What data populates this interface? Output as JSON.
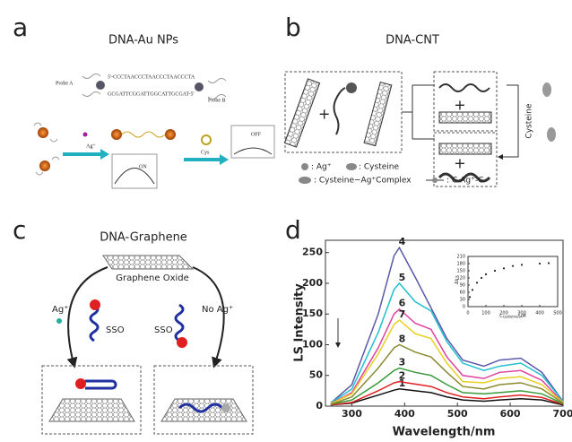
{
  "panels": [
    {
      "letter": "a",
      "title": "DNA-Au NPs",
      "probe_a": "Probe A",
      "probe_b": "Probe B",
      "seq_a": "5'-CCCTAACCCTAACCCTAACCCTA",
      "seq_b": "GCGATTCGGATTGGCATTGCGAT-5'",
      "ag": "Ag⁺",
      "on": "ON",
      "cys": "Cys",
      "off": "OFF"
    },
    {
      "letter": "b",
      "title": "DNA-CNT",
      "legend_ag": ": Ag⁺",
      "legend_cys": ": Cysteine",
      "legend_complex": ": Cysteine−Ag⁺Complex",
      "legend_cagc": ": C-Ag⁺-C",
      "side": "Cysteine"
    },
    {
      "letter": "c",
      "title": "DNA-Graphene",
      "go": "Graphene Oxide",
      "ag": "Ag⁺",
      "sso_left": "SSO",
      "sso_right": "SSO",
      "no_ag": "No Ag⁺"
    },
    {
      "letter": "d"
    }
  ],
  "chart_data": [
    {
      "type": "line",
      "y_label": "LS Intensity",
      "x_label": "Wavelength/nm",
      "x": [
        260,
        300,
        350,
        380,
        390,
        420,
        450,
        480,
        510,
        550,
        580,
        620,
        660,
        700
      ],
      "xlim": [
        250,
        700
      ],
      "ylim": [
        0,
        270
      ],
      "xticks": [
        300,
        400,
        500,
        600,
        700
      ],
      "yticks": [
        0,
        50,
        100,
        150,
        200,
        250
      ],
      "series": [
        {
          "name": "1",
          "color": "#111111",
          "values": [
            2,
            5,
            18,
            26,
            28,
            25,
            22,
            15,
            10,
            8,
            10,
            12,
            10,
            2
          ]
        },
        {
          "name": "2",
          "color": "#e02020",
          "values": [
            2,
            6,
            25,
            38,
            40,
            36,
            32,
            22,
            15,
            12,
            15,
            18,
            14,
            3
          ]
        },
        {
          "name": "3",
          "color": "#3a9a3a",
          "values": [
            3,
            10,
            38,
            58,
            62,
            55,
            50,
            35,
            22,
            20,
            22,
            25,
            20,
            4
          ]
        },
        {
          "name": "4",
          "color": "#5a5aa8",
          "values": [
            5,
            35,
            150,
            245,
            258,
            210,
            160,
            110,
            75,
            65,
            75,
            78,
            55,
            8
          ]
        },
        {
          "name": "5",
          "color": "#22c0d0",
          "values": [
            5,
            28,
            120,
            190,
            200,
            170,
            155,
            105,
            70,
            58,
            65,
            70,
            50,
            8
          ]
        },
        {
          "name": "6",
          "color": "#e040a0",
          "values": [
            4,
            22,
            95,
            150,
            158,
            135,
            125,
            80,
            50,
            45,
            55,
            58,
            42,
            6
          ]
        },
        {
          "name": "7",
          "color": "#e8d020",
          "values": [
            4,
            20,
            85,
            133,
            140,
            118,
            110,
            70,
            40,
            38,
            45,
            48,
            35,
            6
          ]
        },
        {
          "name": "8",
          "color": "#8a8a30",
          "values": [
            3,
            15,
            62,
            95,
            100,
            88,
            80,
            55,
            32,
            28,
            35,
            38,
            28,
            5
          ]
        }
      ]
    },
    {
      "type": "scatter",
      "x_label": "C",
      "x_label_sub": "cysteine",
      "x_label_unit": "/μM",
      "y_label": "ΔI",
      "y_label_sub": "LS",
      "x": [
        10,
        25,
        50,
        75,
        100,
        150,
        200,
        250,
        300,
        400,
        450
      ],
      "values": [
        40,
        70,
        100,
        120,
        135,
        150,
        160,
        170,
        175,
        180,
        182
      ],
      "xlim": [
        0,
        500
      ],
      "ylim": [
        0,
        210
      ],
      "xticks": [
        0,
        100,
        200,
        300,
        400,
        500
      ],
      "yticks": [
        0,
        30,
        60,
        90,
        120,
        150,
        180,
        210
      ]
    }
  ]
}
